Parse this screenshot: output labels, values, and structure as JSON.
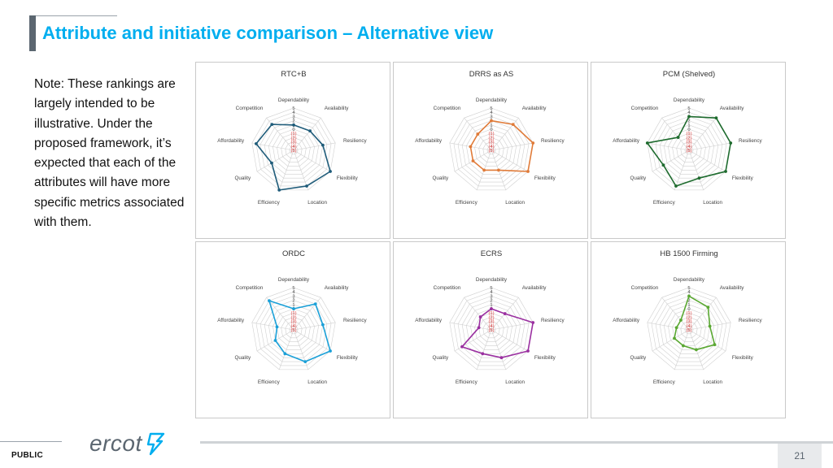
{
  "header": {
    "title": "Attribute and initiative comparison – Alternative view"
  },
  "note": {
    "text": "Note: These rankings are largely intended to be illustrative.  Under the proposed framework, it’s expected that each of the attributes will have more specific metrics associated with them."
  },
  "footer": {
    "classification": "PUBLIC",
    "logo_text": "ercot",
    "page_number": "21"
  },
  "colors": {
    "title": "#00aeef",
    "grid": "#d0d0d0",
    "axis_scale_red": "#e03a3a"
  },
  "chart_data": [
    {
      "type": "radar",
      "title": "RTC+B",
      "color": "#1f5c7a",
      "axes": [
        "Dependability",
        "Availability",
        "Resiliency",
        "Flexibility",
        "Location",
        "Efficiency",
        "Quality",
        "Affordability",
        "Competition"
      ],
      "scale_labels": [
        "5",
        "4",
        "3",
        "2",
        "1",
        "0",
        "(1)",
        "(2)",
        "(3)",
        "(4)",
        "(5)"
      ],
      "range": [
        -5,
        5
      ],
      "values": [
        1,
        1,
        2,
        5,
        4,
        5,
        1,
        4,
        3
      ]
    },
    {
      "type": "radar",
      "title": "DRRS as AS",
      "color": "#e07b39",
      "axes": [
        "Dependability",
        "Availability",
        "Resiliency",
        "Flexibility",
        "Location",
        "Efficiency",
        "Quality",
        "Affordability",
        "Competition"
      ],
      "scale_labels": [
        "5",
        "4",
        "3",
        "2",
        "1",
        "0",
        "(1)",
        "(2)",
        "(3)",
        "(4)",
        "(5)"
      ],
      "range": [
        -5,
        5
      ],
      "values": [
        2,
        3,
        5,
        5,
        0,
        0,
        0,
        0,
        0
      ]
    },
    {
      "type": "radar",
      "title": "PCM (Shelved)",
      "color": "#1e6b2e",
      "axes": [
        "Dependability",
        "Availability",
        "Resiliency",
        "Flexibility",
        "Location",
        "Efficiency",
        "Quality",
        "Affordability",
        "Competition"
      ],
      "scale_labels": [
        "5",
        "4",
        "3",
        "2",
        "1",
        "0",
        "(1)",
        "(2)",
        "(3)",
        "(4)",
        "(5)"
      ],
      "range": [
        -5,
        5
      ],
      "values": [
        3,
        5,
        5,
        5,
        2,
        4,
        2,
        5,
        -1
      ]
    },
    {
      "type": "radar",
      "title": "ORDC",
      "color": "#1aa0d8",
      "axes": [
        "Dependability",
        "Availability",
        "Resiliency",
        "Flexibility",
        "Location",
        "Efficiency",
        "Quality",
        "Affordability",
        "Competition"
      ],
      "scale_labels": [
        "5",
        "4",
        "3",
        "2",
        "1",
        "0",
        "(1)",
        "(2)",
        "(3)",
        "(4)",
        "(5)"
      ],
      "range": [
        -5,
        5
      ],
      "values": [
        0,
        3,
        2,
        5,
        3,
        1,
        0,
        -1,
        4
      ]
    },
    {
      "type": "radar",
      "title": "ECRS",
      "color": "#9a2fa0",
      "axes": [
        "Dependability",
        "Availability",
        "Resiliency",
        "Flexibility",
        "Location",
        "Efficiency",
        "Quality",
        "Affordability",
        "Competition"
      ],
      "scale_labels": [
        "5",
        "4",
        "3",
        "2",
        "1",
        "0",
        "(1)",
        "(2)",
        "(3)",
        "(4)",
        "(5)"
      ],
      "range": [
        -5,
        5
      ],
      "values": [
        0,
        0,
        5,
        5,
        2,
        1,
        3,
        -2,
        -1
      ]
    },
    {
      "type": "radar",
      "title": "HB 1500 Firming",
      "color": "#5aa832",
      "axes": [
        "Dependability",
        "Availability",
        "Resiliency",
        "Flexibility",
        "Location",
        "Efficiency",
        "Quality",
        "Affordability",
        "Competition"
      ],
      "scale_labels": [
        "5",
        "4",
        "3",
        "2",
        "1",
        "0",
        "(1)",
        "(2)",
        "(3)",
        "(4)",
        "(5)"
      ],
      "range": [
        -5,
        5
      ],
      "values": [
        3,
        2,
        0,
        2,
        0,
        -1,
        -1,
        -2,
        -2
      ]
    }
  ]
}
